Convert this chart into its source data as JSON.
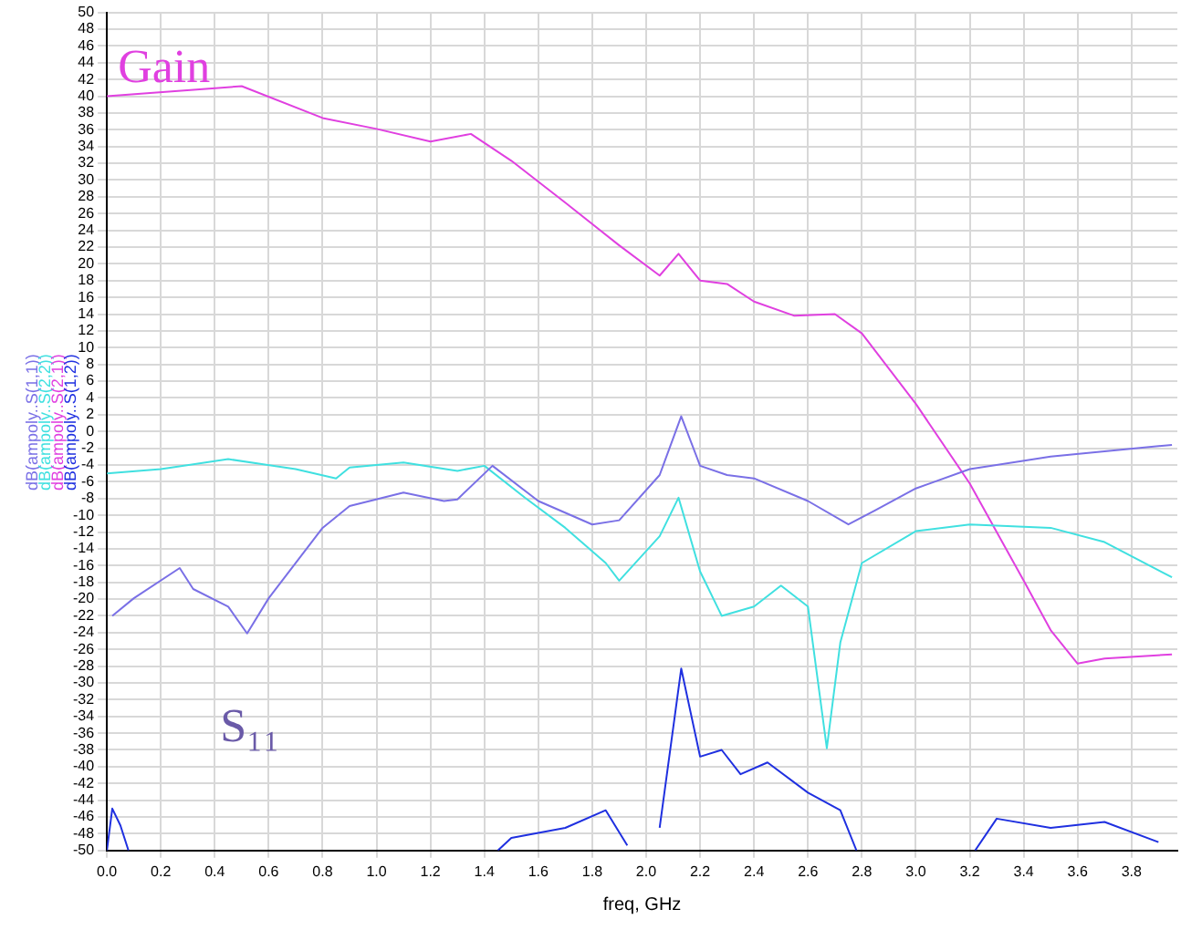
{
  "chart_data": {
    "type": "line",
    "xlabel": "freq, GHz",
    "xlim": [
      0,
      3.97
    ],
    "xticks": [
      {
        "value": 0,
        "label": "0.0"
      },
      {
        "value": 0.2,
        "label": "0.2"
      },
      {
        "value": 0.4,
        "label": "0.4"
      },
      {
        "value": 0.6,
        "label": "0.6"
      },
      {
        "value": 0.8,
        "label": "0.8"
      },
      {
        "value": 1,
        "label": "1.0"
      },
      {
        "value": 1.2,
        "label": "1.2"
      },
      {
        "value": 1.4,
        "label": "1.4"
      },
      {
        "value": 1.6,
        "label": "1.6"
      },
      {
        "value": 1.8,
        "label": "1.8"
      },
      {
        "value": 2,
        "label": "2.0"
      },
      {
        "value": 2.2,
        "label": "2.2"
      },
      {
        "value": 2.4,
        "label": "2.4"
      },
      {
        "value": 2.6,
        "label": "2.6"
      },
      {
        "value": 2.8,
        "label": "2.8"
      },
      {
        "value": 3,
        "label": "3.0"
      },
      {
        "value": 3.2,
        "label": "3.2"
      },
      {
        "value": 3.4,
        "label": "3.4"
      },
      {
        "value": 3.6,
        "label": "3.6"
      },
      {
        "value": 3.8,
        "label": "3.8"
      }
    ],
    "ylim": [
      -50,
      50
    ],
    "yticks": [
      -50,
      -48,
      -46,
      -44,
      -42,
      -40,
      -38,
      -36,
      -34,
      -32,
      -30,
      -28,
      -26,
      -24,
      -22,
      -20,
      -18,
      -16,
      -14,
      -12,
      -10,
      -8,
      -6,
      -4,
      -2,
      0,
      2,
      4,
      6,
      8,
      10,
      12,
      14,
      16,
      18,
      20,
      22,
      24,
      26,
      28,
      30,
      32,
      34,
      36,
      38,
      40,
      42,
      44,
      46,
      48,
      50
    ],
    "grid": true,
    "legend": "left",
    "marker": "none",
    "line_style": "solid",
    "annotations": [
      "Gain",
      "S₁₁"
    ],
    "series": [
      {
        "name": "dB(ampoly..S(1,1))",
        "color": "#7a70e6",
        "x": [
          0.02,
          0.1,
          0.27,
          0.32,
          0.45,
          0.52,
          0.6,
          0.8,
          0.9,
          1.1,
          1.25,
          1.3,
          1.43,
          1.6,
          1.8,
          1.9,
          2.05,
          2.13,
          2.2,
          2.3,
          2.4,
          2.6,
          2.75,
          2.85,
          3.0,
          3.2,
          3.5,
          3.95
        ],
        "values": [
          -22,
          -19.9,
          -16.3,
          -18.8,
          -20.9,
          -24.1,
          -19.9,
          -11.5,
          -8.9,
          -7.3,
          -8.3,
          -8.1,
          -4.1,
          -8.3,
          -11.1,
          -10.6,
          -5.2,
          1.8,
          -4.1,
          -5.2,
          -5.6,
          -8.3,
          -11.1,
          -9.4,
          -6.8,
          -4.5,
          -3,
          -1.6
        ]
      },
      {
        "name": "dB(ampoly..S(2,2))",
        "color": "#40e0e0",
        "x": [
          0,
          0.2,
          0.45,
          0.7,
          0.85,
          0.9,
          1.1,
          1.3,
          1.4,
          1.55,
          1.7,
          1.85,
          1.9,
          2.05,
          2.12,
          2.2,
          2.28,
          2.4,
          2.5,
          2.6,
          2.67,
          2.72,
          2.8,
          3.0,
          3.2,
          3.5,
          3.7,
          3.95
        ],
        "values": [
          -5,
          -4.5,
          -3.3,
          -4.5,
          -5.6,
          -4.3,
          -3.7,
          -4.7,
          -4.1,
          -7.9,
          -11.5,
          -15.7,
          -17.8,
          -12.5,
          -7.9,
          -16.7,
          -22,
          -20.9,
          -18.4,
          -20.9,
          -37.8,
          -25.2,
          -15.7,
          -11.9,
          -11.1,
          -11.5,
          -13.2,
          -17.4
        ]
      },
      {
        "name": "dB(ampoly..S(2,1))",
        "color": "#e040e0",
        "x": [
          0,
          0.5,
          0.8,
          1.0,
          1.2,
          1.35,
          1.5,
          1.7,
          1.9,
          2.05,
          2.12,
          2.2,
          2.3,
          2.4,
          2.55,
          2.7,
          2.8,
          3.0,
          3.2,
          3.4,
          3.5,
          3.6,
          3.7,
          3.95
        ],
        "values": [
          40,
          41.2,
          37.4,
          36.1,
          34.6,
          35.5,
          32.3,
          27.3,
          22.2,
          18.6,
          21.2,
          18,
          17.6,
          15.5,
          13.8,
          14,
          11.7,
          3.3,
          -6.2,
          -17.8,
          -23.7,
          -27.7,
          -27.1,
          -26.6
        ]
      },
      {
        "name": "dB(ampoly..S(1,2))",
        "color": "#1f30e0",
        "x": [
          0,
          0.02,
          0.05,
          0.08,
          0.1,
          1.45,
          1.5,
          1.7,
          1.85,
          1.93,
          2.0,
          2.05,
          2.13,
          2.2,
          2.28,
          2.35,
          2.45,
          2.6,
          2.72,
          2.78,
          2.9,
          3.22,
          3.3,
          3.5,
          3.7,
          3.9
        ],
        "values": [
          -50,
          -45,
          -47,
          -50,
          null,
          -50,
          -48.5,
          -47.3,
          -45.2,
          -49.4,
          null,
          -47.3,
          -28.3,
          -38.8,
          -38,
          -40.9,
          -39.5,
          -43.1,
          -45.2,
          -50,
          null,
          -50,
          -46.2,
          -47.3,
          -46.6,
          -49
        ]
      }
    ]
  }
}
